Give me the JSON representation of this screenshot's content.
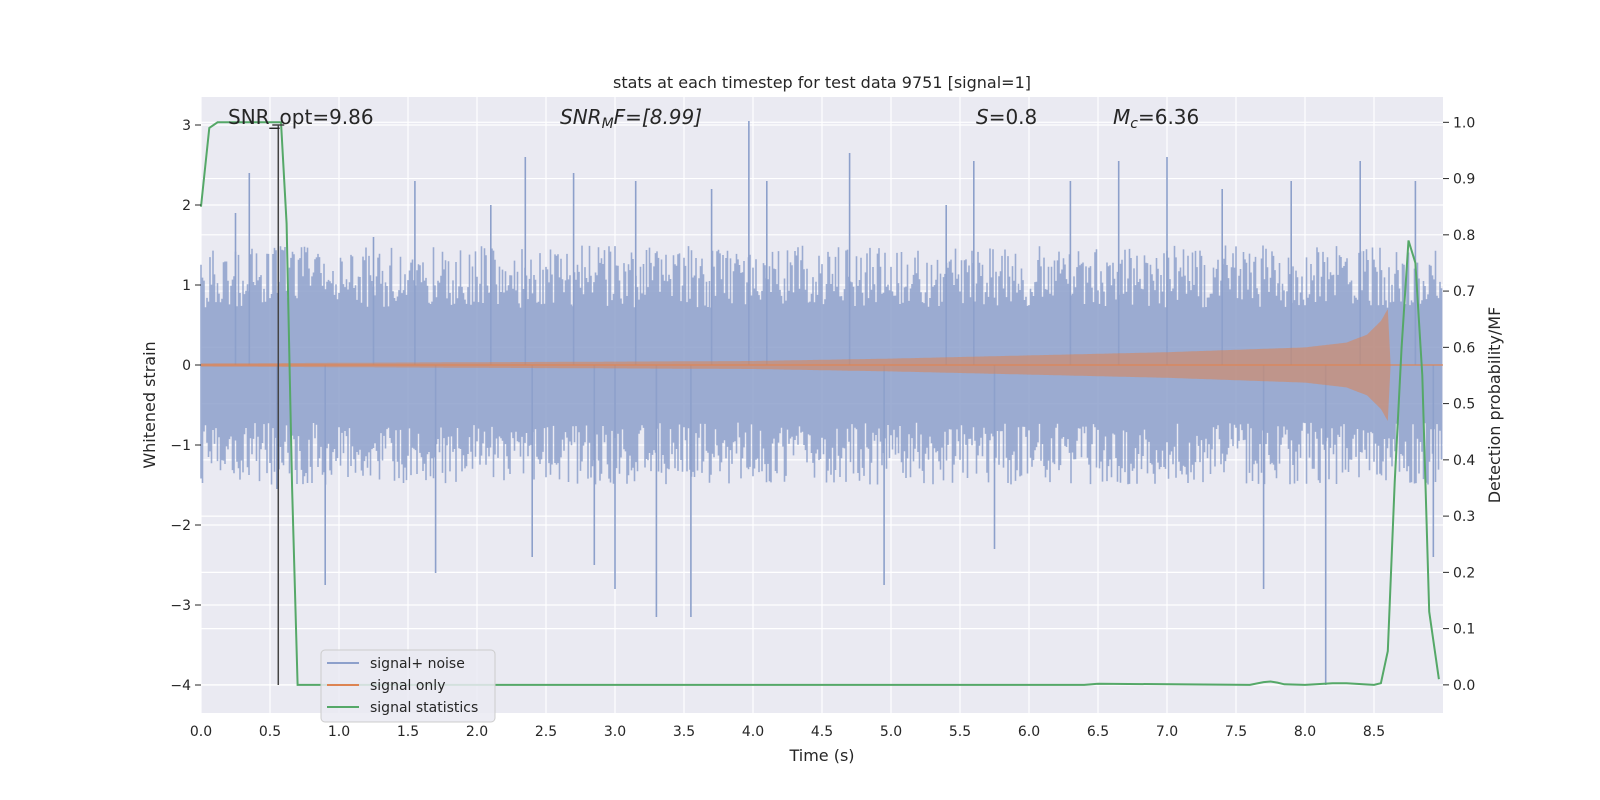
{
  "chart_data": {
    "type": "line",
    "title": "stats at each timestep for test data 9751 [signal=1]",
    "xlabel": "Time (s)",
    "ylabel_left": "Whitened strain",
    "ylabel_right": "Detection probability/MF",
    "xlim": [
      0.0,
      9.0
    ],
    "ylim_left": [
      -4.35,
      3.35
    ],
    "ylim_right": [
      -0.05,
      1.045
    ],
    "x_ticks": [
      "0.0",
      "0.5",
      "1.0",
      "1.5",
      "2.0",
      "2.5",
      "3.0",
      "3.5",
      "4.0",
      "4.5",
      "5.0",
      "5.5",
      "6.0",
      "6.5",
      "7.0",
      "7.5",
      "8.0",
      "8.5"
    ],
    "y_left_ticks": [
      "3",
      "2",
      "1",
      "0",
      "−1",
      "−2",
      "−3",
      "−4"
    ],
    "y_right_ticks": [
      "1.0",
      "0.9",
      "0.8",
      "0.7",
      "0.6",
      "0.5",
      "0.4",
      "0.3",
      "0.2",
      "0.1",
      "0.0"
    ],
    "grid": true,
    "legend_position": "lower-left",
    "annotations": {
      "snr_opt": "SNR_opt=9.86",
      "snr_mf_italic": "SNR",
      "snr_mf_sub": "M",
      "snr_mf_tail": "F=[8.99]",
      "s_italic": "S",
      "s_value": "=0.8",
      "mc_italic": "M",
      "mc_sub": "c",
      "mc_value": "=6.36"
    },
    "marker_line_x": 0.56,
    "series": [
      {
        "name": "signal+ noise",
        "color": "#8da0cb",
        "axis": "left",
        "description_envelope": {
          "typical_upper": 1.3,
          "typical_lower": -1.3,
          "max": 3.05,
          "min": -4.0
        },
        "spikes": [
          {
            "x": 0.25,
            "y": 1.9
          },
          {
            "x": 0.35,
            "y": 2.4
          },
          {
            "x": 0.55,
            "y": -1.55
          },
          {
            "x": 0.9,
            "y": -2.75
          },
          {
            "x": 1.25,
            "y": 1.6
          },
          {
            "x": 1.55,
            "y": 2.3
          },
          {
            "x": 1.7,
            "y": -2.6
          },
          {
            "x": 2.1,
            "y": 2.0
          },
          {
            "x": 2.35,
            "y": 2.6
          },
          {
            "x": 2.4,
            "y": -2.4
          },
          {
            "x": 2.7,
            "y": 2.4
          },
          {
            "x": 2.85,
            "y": -2.5
          },
          {
            "x": 3.0,
            "y": -2.8
          },
          {
            "x": 3.15,
            "y": 2.3
          },
          {
            "x": 3.3,
            "y": -3.15
          },
          {
            "x": 3.55,
            "y": -3.15
          },
          {
            "x": 3.7,
            "y": 2.2
          },
          {
            "x": 3.97,
            "y": 3.05
          },
          {
            "x": 4.1,
            "y": 2.3
          },
          {
            "x": 4.7,
            "y": 2.65
          },
          {
            "x": 4.95,
            "y": -2.75
          },
          {
            "x": 5.4,
            "y": 2.0
          },
          {
            "x": 5.6,
            "y": 2.55
          },
          {
            "x": 5.75,
            "y": -2.3
          },
          {
            "x": 6.3,
            "y": 2.3
          },
          {
            "x": 6.65,
            "y": 2.55
          },
          {
            "x": 7.0,
            "y": 2.6
          },
          {
            "x": 7.4,
            "y": 2.2
          },
          {
            "x": 7.7,
            "y": -2.8
          },
          {
            "x": 7.9,
            "y": 2.3
          },
          {
            "x": 8.15,
            "y": -4.0
          },
          {
            "x": 8.4,
            "y": 2.55
          },
          {
            "x": 8.8,
            "y": 2.3
          },
          {
            "x": 8.93,
            "y": -2.4
          }
        ]
      },
      {
        "name": "signal only",
        "color": "#e5a68a",
        "axis": "left",
        "chirp_envelope": {
          "t": [
            0.0,
            4.0,
            5.0,
            6.0,
            7.0,
            8.0,
            8.3,
            8.45,
            8.55,
            8.6,
            8.62
          ],
          "amp": [
            0.02,
            0.05,
            0.08,
            0.12,
            0.16,
            0.22,
            0.28,
            0.38,
            0.55,
            0.7,
            0.0
          ]
        }
      },
      {
        "name": "signal statistics",
        "color": "#55a868",
        "axis": "right",
        "x": [
          0.0,
          0.06,
          0.12,
          0.55,
          0.58,
          0.62,
          0.66,
          0.7,
          1.0,
          6.4,
          6.5,
          7.6,
          7.7,
          7.75,
          7.8,
          7.85,
          8.0,
          8.2,
          8.3,
          8.5,
          8.55,
          8.6,
          8.65,
          8.7,
          8.75,
          8.8,
          8.85,
          8.9,
          8.97
        ],
        "y": [
          0.85,
          0.99,
          1.0,
          1.0,
          1.0,
          0.82,
          0.35,
          0.0,
          0.0,
          0.0,
          0.002,
          0.0,
          0.005,
          0.006,
          0.004,
          0.001,
          0.0,
          0.003,
          0.003,
          0.0,
          0.003,
          0.06,
          0.36,
          0.6,
          0.79,
          0.75,
          0.55,
          0.13,
          0.01
        ]
      }
    ]
  }
}
